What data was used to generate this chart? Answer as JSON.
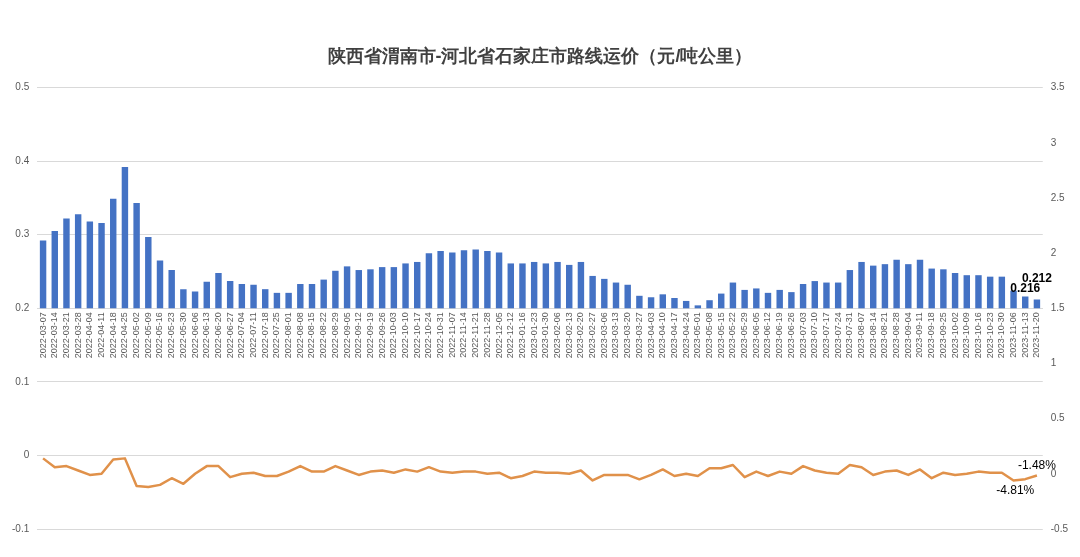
{
  "chart_data": {
    "type": "bar",
    "title": "陕西省渭南市-河北省石家庄市路线运价（元/吨公里）",
    "categories": [
      "2022-03-07",
      "2022-03-14",
      "2022-03-21",
      "2022-03-28",
      "2022-04-04",
      "2022-04-11",
      "2022-04-18",
      "2022-04-25",
      "2022-05-02",
      "2022-05-09",
      "2022-05-16",
      "2022-05-23",
      "2022-05-30",
      "2022-06-06",
      "2022-06-13",
      "2022-06-20",
      "2022-06-27",
      "2022-07-04",
      "2022-07-11",
      "2022-07-18",
      "2022-07-25",
      "2022-08-01",
      "2022-08-08",
      "2022-08-15",
      "2022-08-22",
      "2022-08-29",
      "2022-09-05",
      "2022-09-12",
      "2022-09-19",
      "2022-09-26",
      "2022-10-03",
      "2022-10-10",
      "2022-10-17",
      "2022-10-24",
      "2022-10-31",
      "2022-11-07",
      "2022-11-14",
      "2022-11-21",
      "2022-11-28",
      "2022-12-05",
      "2022-12-12",
      "2023-01-16",
      "2023-01-23",
      "2023-01-30",
      "2023-02-06",
      "2023-02-13",
      "2023-02-20",
      "2023-02-27",
      "2023-03-06",
      "2023-03-13",
      "2023-03-20",
      "2023-03-27",
      "2023-04-03",
      "2023-04-10",
      "2023-04-17",
      "2023-04-24",
      "2023-05-01",
      "2023-05-08",
      "2023-05-15",
      "2023-05-22",
      "2023-05-29",
      "2023-06-05",
      "2023-06-12",
      "2023-06-19",
      "2023-06-26",
      "2023-07-03",
      "2023-07-10",
      "2023-07-17",
      "2023-07-24",
      "2023-07-31",
      "2023-08-07",
      "2023-08-14",
      "2023-08-21",
      "2023-08-28",
      "2023-09-04",
      "2023-09-11",
      "2023-09-18",
      "2023-09-25",
      "2023-10-02",
      "2023-10-09",
      "2023-10-16",
      "2023-10-23",
      "2023-10-30",
      "2023-11-06",
      "2023-11-13",
      "2023-11-20"
    ],
    "series": [
      {
        "color": "#4472c4",
        "base": [
          0.2,
          0.2,
          0.2,
          0.2,
          0.2,
          0.2,
          0.2,
          0.2,
          0.2,
          0.2,
          0.2,
          0.2,
          0.2,
          0.2,
          0.2,
          0.2,
          0.2,
          0.2,
          0.2,
          0.2,
          0.2,
          0.2,
          0.2,
          0.2,
          0.2,
          0.2,
          0.2,
          0.2,
          0.2,
          0.2,
          0.2,
          0.2,
          0.2,
          0.2,
          0.2,
          0.2,
          0.2,
          0.2,
          0.2,
          0.2,
          0.2,
          0.2,
          0.2,
          0.2,
          0.2,
          0.2,
          0.2,
          0.2,
          0.2,
          0.2,
          0.2,
          0.2,
          0.2,
          0.2,
          0.2,
          0.2,
          0.2,
          0.2,
          0.2,
          0.2,
          0.2,
          0.2,
          0.2,
          0.2,
          0.2,
          0.2,
          0.2,
          0.2,
          0.2,
          0.2,
          0.2,
          0.2,
          0.2,
          0.2,
          0.2,
          0.2,
          0.2,
          0.2,
          0.2,
          0.2,
          0.2,
          0.2,
          0.2,
          0.2,
          0.2,
          0.2
        ],
        "values": [
          0.092,
          0.105,
          0.122,
          0.128,
          0.118,
          0.116,
          0.149,
          0.192,
          0.143,
          0.097,
          0.065,
          0.052,
          0.026,
          0.023,
          0.036,
          0.048,
          0.037,
          0.033,
          0.032,
          0.026,
          0.021,
          0.021,
          0.033,
          0.033,
          0.039,
          0.051,
          0.057,
          0.052,
          0.053,
          0.056,
          0.056,
          0.061,
          0.063,
          0.075,
          0.078,
          0.076,
          0.079,
          0.08,
          0.078,
          0.076,
          0.061,
          0.061,
          0.063,
          0.061,
          0.063,
          0.059,
          0.063,
          0.044,
          0.04,
          0.035,
          0.032,
          0.017,
          0.015,
          0.019,
          0.014,
          0.01,
          0.004,
          0.011,
          0.02,
          0.035,
          0.025,
          0.027,
          0.021,
          0.025,
          0.022,
          0.033,
          0.037,
          0.035,
          0.035,
          0.052,
          0.063,
          0.058,
          0.06,
          0.066,
          0.06,
          0.066,
          0.054,
          0.053,
          0.048,
          0.045,
          0.045,
          0.043,
          0.043,
          0.024,
          0.016,
          0.012
        ],
        "value_labels": [
          null,
          null,
          null,
          null,
          null,
          null,
          null,
          null,
          null,
          null,
          null,
          null,
          null,
          null,
          null,
          null,
          null,
          null,
          null,
          null,
          null,
          null,
          null,
          null,
          null,
          null,
          null,
          null,
          null,
          null,
          null,
          null,
          null,
          null,
          null,
          null,
          null,
          null,
          null,
          null,
          null,
          null,
          null,
          null,
          null,
          null,
          null,
          null,
          null,
          null,
          null,
          null,
          null,
          null,
          null,
          null,
          null,
          null,
          null,
          null,
          null,
          null,
          null,
          null,
          null,
          null,
          null,
          null,
          null,
          null,
          null,
          null,
          null,
          null,
          null,
          null,
          null,
          null,
          null,
          null,
          null,
          null,
          null,
          null,
          "0.216",
          "0.212"
        ]
      },
      {
        "type": "line",
        "axis": "y2",
        "color": "#e0914a",
        "values": [
          0.14,
          0.06,
          0.07,
          0.03,
          -0.01,
          0.0,
          0.13,
          0.14,
          -0.11,
          -0.12,
          -0.1,
          -0.04,
          -0.09,
          0.0,
          0.07,
          0.07,
          -0.03,
          0.0,
          0.01,
          -0.02,
          -0.02,
          0.02,
          0.07,
          0.02,
          0.02,
          0.07,
          0.03,
          -0.01,
          0.02,
          0.03,
          0.01,
          0.04,
          0.02,
          0.06,
          0.02,
          0.01,
          0.02,
          0.02,
          0.0,
          0.01,
          -0.04,
          -0.02,
          0.02,
          0.01,
          0.01,
          0.0,
          0.03,
          -0.06,
          -0.01,
          -0.01,
          -0.01,
          -0.05,
          -0.01,
          0.04,
          -0.02,
          0.0,
          -0.02,
          0.05,
          0.05,
          0.08,
          -0.03,
          0.02,
          -0.02,
          0.02,
          0.0,
          0.07,
          0.03,
          0.01,
          0.0,
          0.08,
          0.06,
          -0.01,
          0.02,
          0.03,
          -0.01,
          0.04,
          -0.04,
          0.01,
          -0.01,
          0.0,
          0.02,
          0.01,
          0.01,
          -0.06,
          -0.0481,
          -0.0148
        ],
        "value_labels": [
          null,
          null,
          null,
          null,
          null,
          null,
          null,
          null,
          null,
          null,
          null,
          null,
          null,
          null,
          null,
          null,
          null,
          null,
          null,
          null,
          null,
          null,
          null,
          null,
          null,
          null,
          null,
          null,
          null,
          null,
          null,
          null,
          null,
          null,
          null,
          null,
          null,
          null,
          null,
          null,
          null,
          null,
          null,
          null,
          null,
          null,
          null,
          null,
          null,
          null,
          null,
          null,
          null,
          null,
          null,
          null,
          null,
          null,
          null,
          null,
          null,
          null,
          null,
          null,
          null,
          null,
          null,
          null,
          null,
          null,
          null,
          null,
          null,
          null,
          null,
          null,
          null,
          null,
          null,
          null,
          null,
          null,
          null,
          null,
          "-4.81%",
          "-1.48%"
        ]
      }
    ],
    "ylim": [
      -0.1,
      0.5
    ],
    "yticks": [
      -0.1,
      0,
      0.1,
      0.2,
      0.3,
      0.4,
      0.5
    ],
    "y2lim": [
      -0.5,
      3.5
    ],
    "y2ticks": [
      -0.5,
      0,
      0.5,
      1,
      1.5,
      2,
      2.5,
      3,
      3.5
    ],
    "grid": "y",
    "legend": false,
    "marker": "none",
    "line_style": "solid"
  }
}
